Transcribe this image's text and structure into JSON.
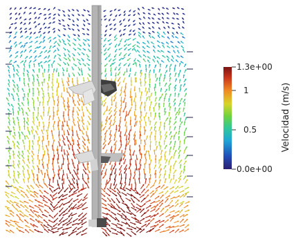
{
  "colorbar": {
    "title": "Velocidad (m/s)",
    "max_label": "1.3e+00",
    "mid1_label": "1",
    "mid2_label": "0.5",
    "min_label": "0.0e+00",
    "range": [
      0.0,
      1.3
    ],
    "colormap": "jet",
    "stops": [
      "#2b1e73",
      "#1f4fb8",
      "#1fa6d6",
      "#2fc79a",
      "#6fd33e",
      "#d8d42a",
      "#f08a24",
      "#c8321d",
      "#7a1412"
    ]
  },
  "colors": {
    "shaft": "#b4b4b4",
    "impeller": "#d9d9d9",
    "impeller_shadow": "#4a4a4a"
  }
}
